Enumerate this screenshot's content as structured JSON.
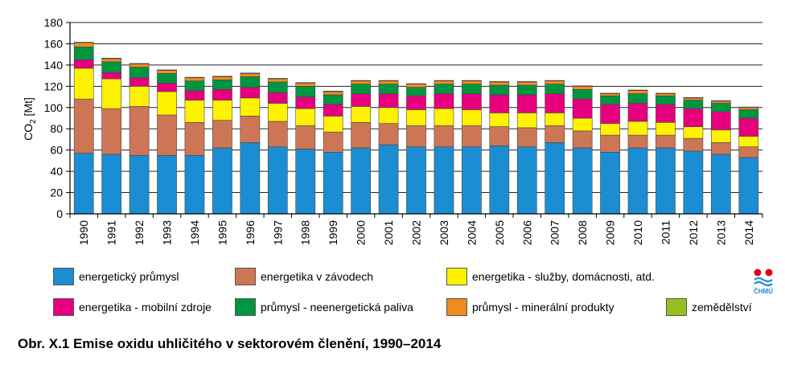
{
  "caption": "Obr. X.1 Emise oxidu uhličitého v sektorovém členění, 1990–2014",
  "logo_text": "ČHMÚ",
  "chart_data": {
    "type": "bar",
    "stacked": true,
    "ylabel": "CO2 [Mt]",
    "ylim": [
      0,
      180
    ],
    "yticks": [
      0,
      20,
      40,
      60,
      80,
      100,
      120,
      140,
      160,
      180
    ],
    "grid": true,
    "legend": "bottom",
    "categories": [
      "1990",
      "1991",
      "1992",
      "1993",
      "1994",
      "1995",
      "1996",
      "1997",
      "1998",
      "1999",
      "2000",
      "2001",
      "2002",
      "2003",
      "2004",
      "2005",
      "2006",
      "2007",
      "2008",
      "2009",
      "2010",
      "2011",
      "2012",
      "2013",
      "2014"
    ],
    "series": [
      {
        "name": "energetický průmysl",
        "color": "#1b8ed3",
        "values": [
          57,
          56,
          55,
          55,
          55,
          62,
          67,
          63,
          61,
          58,
          62,
          65,
          63,
          63,
          63,
          64,
          63,
          67,
          62,
          58,
          62,
          62,
          59,
          56,
          53
        ]
      },
      {
        "name": "energetika v závodech",
        "color": "#cd7656",
        "values": [
          51,
          43,
          46,
          38,
          31,
          26,
          25,
          24,
          22,
          19,
          24,
          20,
          20,
          20,
          20,
          18,
          18,
          16,
          16,
          16,
          12,
          12,
          12,
          11,
          10
        ]
      },
      {
        "name": "energetika - služby, domácnosti, atd.",
        "color": "#fff200",
        "values": [
          29,
          28,
          19,
          22,
          21,
          19,
          17,
          17,
          16,
          15,
          15,
          15,
          15,
          16,
          15,
          13,
          14,
          12,
          12,
          11,
          13,
          12,
          11,
          12,
          10
        ]
      },
      {
        "name": "energetika - mobilní zdroje",
        "color": "#e6007e",
        "values": [
          8,
          6,
          8,
          8,
          9,
          10,
          10,
          10,
          11,
          11,
          12,
          13,
          13,
          14,
          15,
          17,
          17,
          18,
          18,
          18,
          17,
          17,
          17,
          17,
          17
        ]
      },
      {
        "name": "průmysl - neenergetická paliva",
        "color": "#009640",
        "values": [
          12,
          10,
          10,
          9,
          9,
          9,
          10,
          10,
          10,
          9,
          9,
          9,
          8,
          9,
          9,
          9,
          9,
          9,
          9,
          8,
          9,
          8,
          8,
          8,
          8
        ]
      },
      {
        "name": "průmysl - minerální produkty",
        "color": "#f08c1e",
        "values": [
          4,
          3,
          3,
          3,
          3,
          3,
          3,
          3,
          3,
          3,
          3,
          3,
          3,
          3,
          3,
          3,
          3,
          3,
          3,
          2,
          3,
          2,
          2,
          2,
          2
        ]
      },
      {
        "name": "zemědělství",
        "color": "#95c11f",
        "values": [
          0.5,
          0.5,
          0.5,
          0.5,
          0.5,
          0.5,
          0.5,
          0.5,
          0.5,
          0.5,
          0.5,
          0.5,
          0.5,
          0.5,
          0.5,
          0.5,
          0.5,
          0.5,
          0.5,
          0.5,
          0.5,
          0.5,
          0.5,
          0.5,
          0.5
        ]
      }
    ]
  }
}
